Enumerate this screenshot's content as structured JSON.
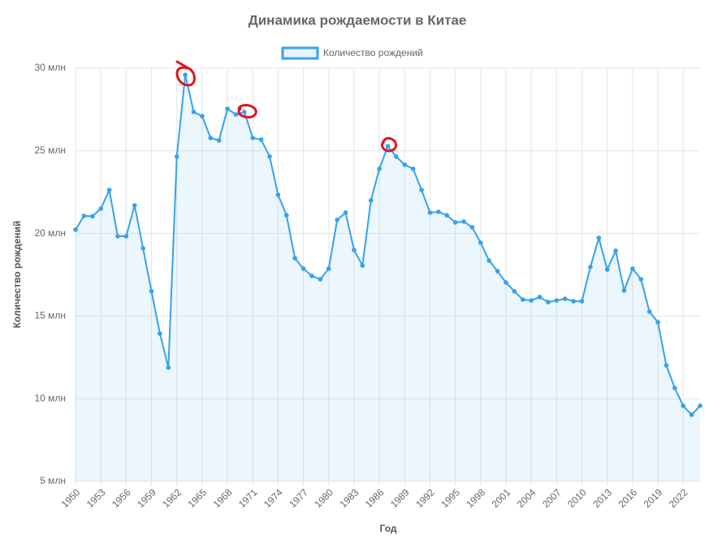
{
  "chart_data": {
    "type": "line",
    "title": "Динамика рождаемости в Китае",
    "x_label": "Год",
    "y_label": "Количество рождений",
    "x": [
      1950,
      1951,
      1952,
      1953,
      1954,
      1955,
      1956,
      1957,
      1958,
      1959,
      1960,
      1961,
      1962,
      1963,
      1964,
      1965,
      1966,
      1967,
      1968,
      1969,
      1970,
      1971,
      1972,
      1973,
      1974,
      1975,
      1976,
      1977,
      1978,
      1979,
      1980,
      1981,
      1982,
      1983,
      1984,
      1985,
      1986,
      1987,
      1988,
      1989,
      1990,
      1991,
      1992,
      1993,
      1994,
      1995,
      1996,
      1997,
      1998,
      1999,
      2000,
      2001,
      2002,
      2003,
      2004,
      2005,
      2006,
      2007,
      2008,
      2009,
      2010,
      2011,
      2012,
      2013,
      2014,
      2015,
      2016,
      2017,
      2018,
      2019,
      2020,
      2021,
      2022,
      2023,
      2024
    ],
    "series": [
      {
        "name": "Количество рождений",
        "color": "#36a2eb",
        "values": [
          20.23,
          21.06,
          21.04,
          21.5,
          22.63,
          19.83,
          19.83,
          21.7,
          19.1,
          16.5,
          13.94,
          11.88,
          24.65,
          29.6,
          27.35,
          27.1,
          25.78,
          25.63,
          27.54,
          27.2,
          27.35,
          25.78,
          25.68,
          24.65,
          22.34,
          21.1,
          18.5,
          17.87,
          17.43,
          17.23,
          17.87,
          20.82,
          21.26,
          19.0,
          18.06,
          22.0,
          23.91,
          25.28,
          24.65,
          24.16,
          23.91,
          22.63,
          21.26,
          21.31,
          21.1,
          20.67,
          20.72,
          20.37,
          19.44,
          18.36,
          17.72,
          17.03,
          16.5,
          16.0,
          15.95,
          16.15,
          15.85,
          15.95,
          16.05,
          15.9,
          15.9,
          17.97,
          19.73,
          17.82,
          18.95,
          16.55,
          17.87,
          17.23,
          15.27,
          14.63,
          12.02,
          10.65,
          9.57,
          9.03,
          9.57
        ]
      }
    ],
    "xlim": [
      1950,
      2024
    ],
    "xticks": [
      1950,
      1953,
      1956,
      1959,
      1962,
      1965,
      1968,
      1971,
      1974,
      1977,
      1980,
      1983,
      1986,
      1989,
      1992,
      1995,
      1998,
      2001,
      2004,
      2007,
      2010,
      2013,
      2016,
      2019,
      2022
    ],
    "ylim": [
      5,
      30
    ],
    "yticks": [
      {
        "value": 5,
        "label": "5 млн"
      },
      {
        "value": 10,
        "label": "10 млн"
      },
      {
        "value": 15,
        "label": "15 млн"
      },
      {
        "value": 20,
        "label": "20 млн"
      },
      {
        "value": 25,
        "label": "25 млн"
      },
      {
        "value": 30,
        "label": "30 млн"
      }
    ],
    "grid": true
  }
}
